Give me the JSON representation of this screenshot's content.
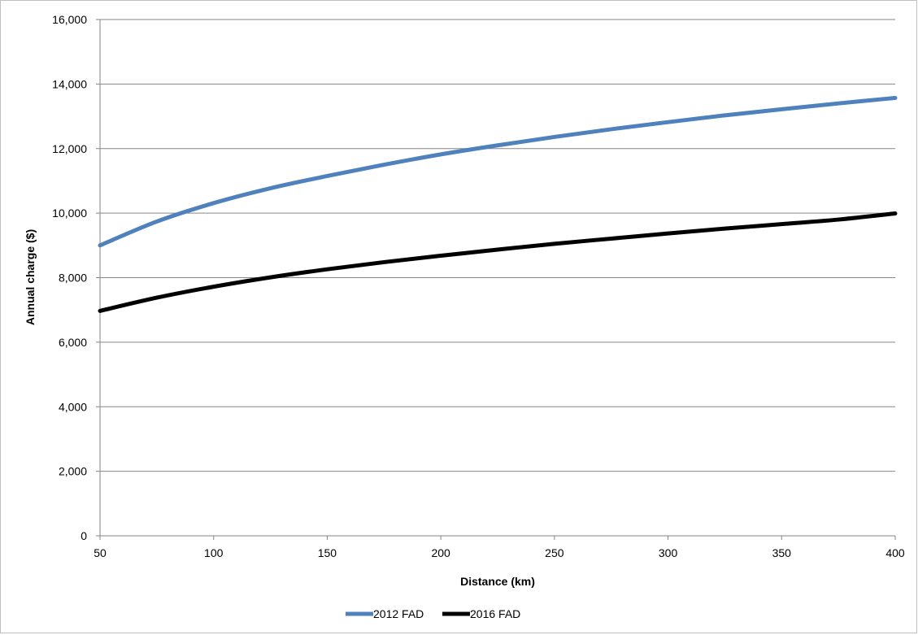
{
  "chart_data": {
    "type": "line",
    "title": "",
    "xlabel": "Distance (km)",
    "ylabel": "Annual charge ($)",
    "xlim": [
      50,
      400
    ],
    "ylim": [
      0,
      16000
    ],
    "x_ticks": [
      50,
      100,
      150,
      200,
      250,
      300,
      350,
      400
    ],
    "x_tick_labels": [
      "50",
      "100",
      "150",
      "200",
      "250",
      "300",
      "350",
      "400"
    ],
    "y_ticks": [
      0,
      2000,
      4000,
      6000,
      8000,
      10000,
      12000,
      14000,
      16000
    ],
    "y_tick_labels": [
      "0",
      "2,000",
      "4,000",
      "6,000",
      "8,000",
      "10,000",
      "12,000",
      "14,000",
      "16,000"
    ],
    "grid": "horizontal",
    "legend_position": "bottom",
    "x": [
      50,
      75,
      100,
      125,
      150,
      175,
      200,
      225,
      250,
      275,
      300,
      325,
      350,
      375,
      400
    ],
    "series": [
      {
        "name": "2012 FAD",
        "color": "#4f81bd",
        "values": [
          9000,
          9740,
          10310,
          10770,
          11150,
          11500,
          11820,
          12100,
          12360,
          12600,
          12820,
          13030,
          13220,
          13400,
          13570
        ]
      },
      {
        "name": "2016 FAD",
        "color": "#000000",
        "values": [
          6970,
          7380,
          7720,
          8010,
          8260,
          8480,
          8680,
          8870,
          9050,
          9210,
          9370,
          9520,
          9660,
          9800,
          9990
        ]
      }
    ]
  }
}
